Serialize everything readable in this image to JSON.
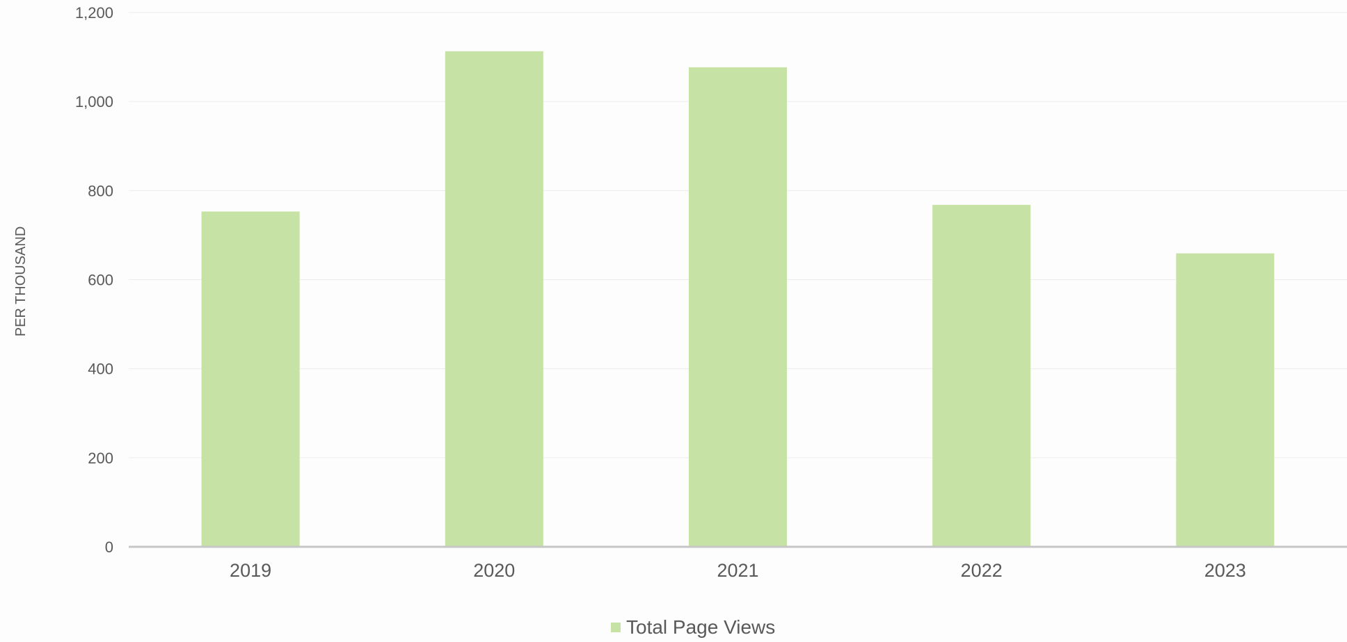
{
  "chart_data": {
    "type": "bar",
    "categories": [
      "2019",
      "2020",
      "2021",
      "2022",
      "2023"
    ],
    "series": [
      {
        "name": "Total Page Views",
        "values": [
          753,
          1113,
          1077,
          768,
          659
        ],
        "color": "#c6e2a4"
      }
    ],
    "ylabel": "PER THOUSAND",
    "ylim": [
      0,
      1200
    ],
    "yticks": [
      0,
      200,
      400,
      600,
      800,
      1000,
      1200
    ],
    "ytick_labels": [
      "0",
      "200",
      "400",
      "600",
      "800",
      "1,000",
      "1,200"
    ],
    "grid": true,
    "legend": "bottom-center",
    "gridline_color": "#ececec",
    "axis_color": "#c6c6c6",
    "text_color": "#595959"
  }
}
